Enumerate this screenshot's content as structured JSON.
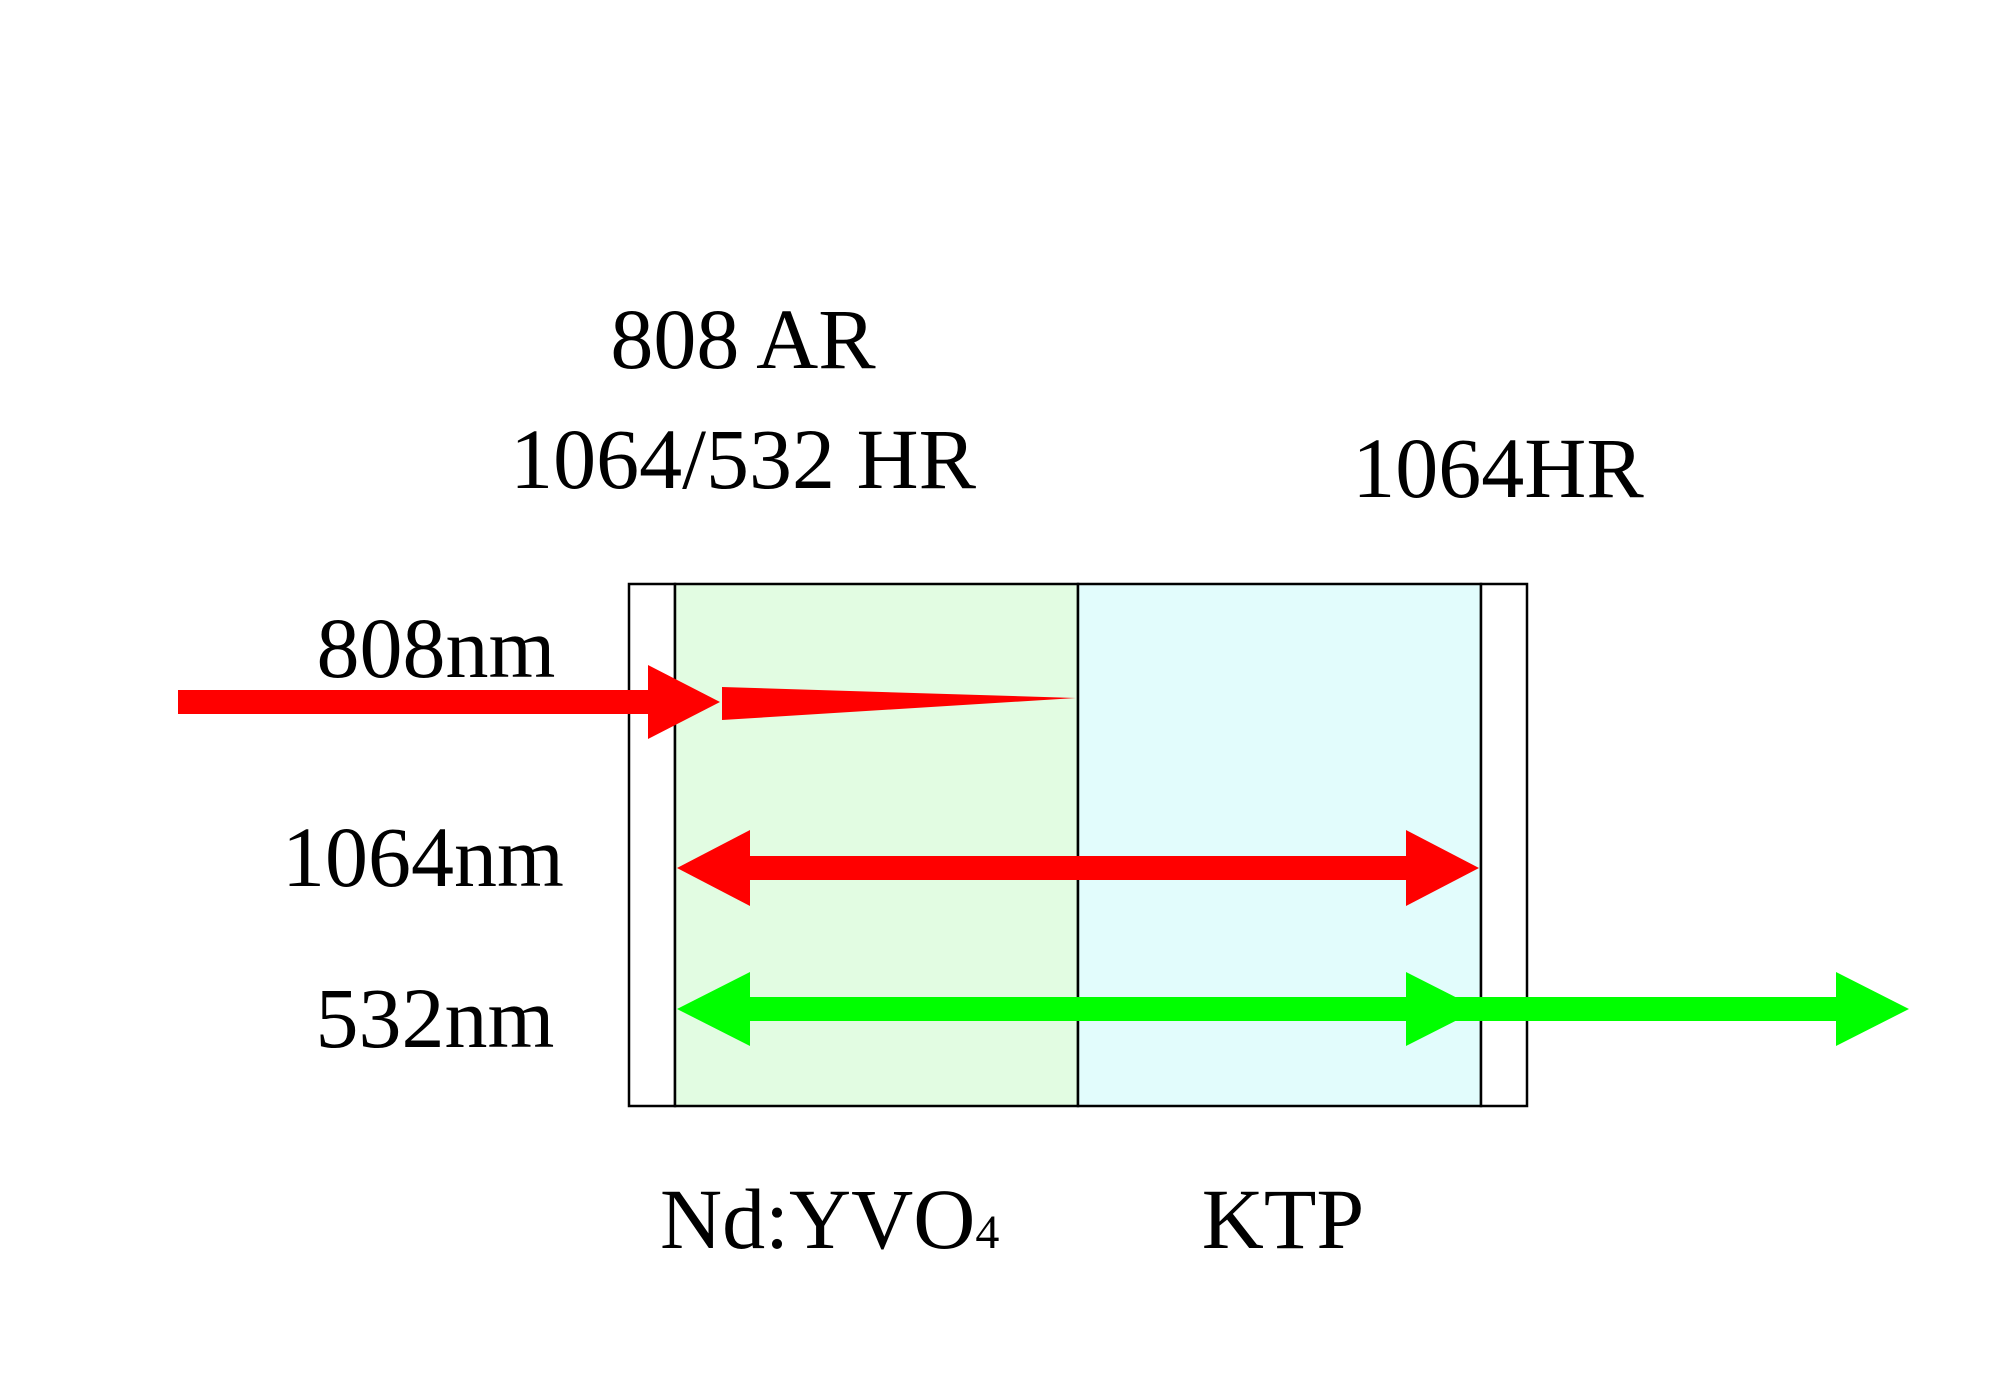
{
  "coatings": {
    "input_line1": "808 AR",
    "input_line2": "1064/532 HR",
    "output": "1064HR"
  },
  "beams": {
    "pump": "808nm",
    "fundamental": "1064nm",
    "second_harmonic": "532nm"
  },
  "crystals": {
    "gain_medium_main": "Nd:YVO",
    "gain_medium_subscript": "4",
    "doubler": "KTP"
  },
  "colors": {
    "red_beam": "#ff0000",
    "green_beam": "#00ff00",
    "gain_medium_fill": "#e2fce2",
    "doubler_fill": "#e2fcfc",
    "outline": "#000000",
    "background": "#ffffff"
  }
}
